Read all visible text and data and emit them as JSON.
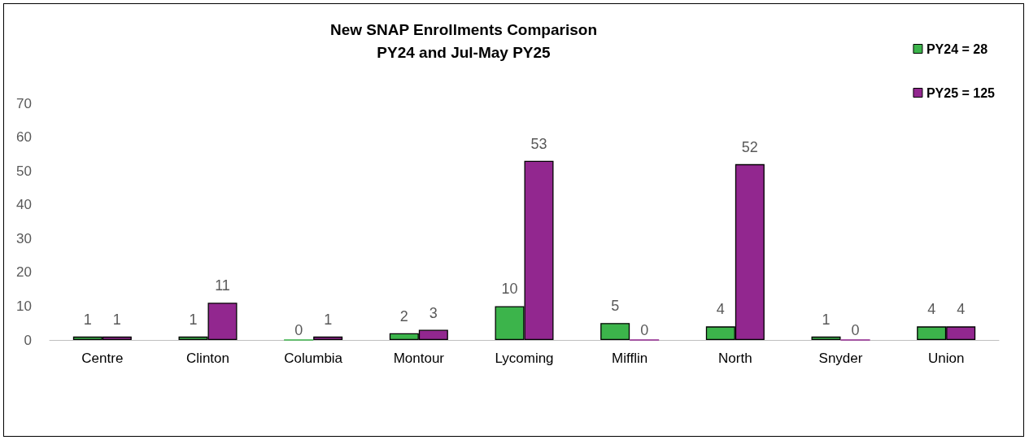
{
  "chart_data": {
    "type": "bar",
    "title": "New SNAP Enrollments Comparison\nPY24 and Jul-May PY25",
    "categories": [
      "Centre",
      "Clinton",
      "Columbia",
      "Montour",
      "Lycoming",
      "Mifflin",
      "North",
      "Snyder",
      "Union"
    ],
    "series": [
      {
        "name": "PY24 = 28",
        "color": "#3cb44b",
        "values": [
          1,
          1,
          0,
          2,
          10,
          5,
          4,
          1,
          4
        ]
      },
      {
        "name": "PY25 = 125",
        "color": "#92278f",
        "values": [
          1,
          11,
          1,
          3,
          53,
          0,
          52,
          0,
          4
        ]
      }
    ],
    "ylim": [
      0,
      70
    ],
    "yticks": [
      0,
      10,
      20,
      30,
      40,
      50,
      60,
      70
    ],
    "grid": false,
    "legend": "top right",
    "data_labels": true
  }
}
